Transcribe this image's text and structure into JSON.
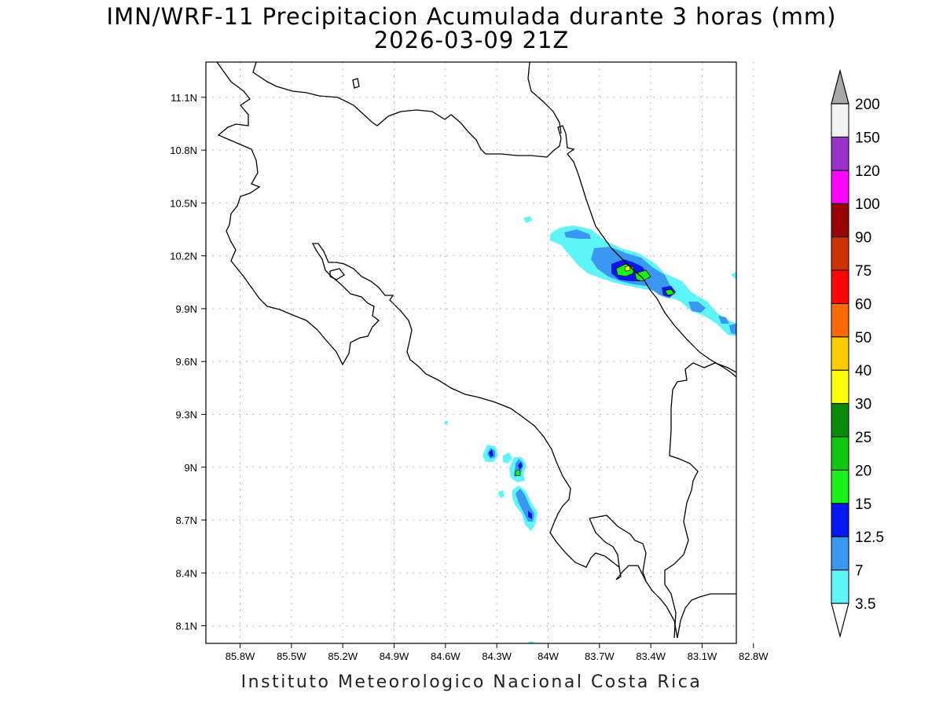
{
  "title": {
    "line1": "IMN/WRF-11 Precipitacion Acumulada durante 3 horas (mm)",
    "line2": "2026-03-09 21Z"
  },
  "footer": "Instituto Meteorologico Nacional Costa Rica",
  "map": {
    "lon_range": [
      -86.0,
      -82.9
    ],
    "lat_range": [
      8.0,
      11.3
    ],
    "lon_ticks": [
      {
        "value": -85.8,
        "label": "85.8W"
      },
      {
        "value": -85.5,
        "label": "85.5W"
      },
      {
        "value": -85.2,
        "label": "85.2W"
      },
      {
        "value": -84.9,
        "label": "84.9W"
      },
      {
        "value": -84.6,
        "label": "84.6W"
      },
      {
        "value": -84.3,
        "label": "84.3W"
      },
      {
        "value": -84.0,
        "label": "84W"
      },
      {
        "value": -83.7,
        "label": "83.7W"
      },
      {
        "value": -83.4,
        "label": "83.4W"
      },
      {
        "value": -83.1,
        "label": "83.1W"
      },
      {
        "value": -82.8,
        "label": "82.8W"
      }
    ],
    "lat_ticks": [
      {
        "value": 11.1,
        "label": "11.1N"
      },
      {
        "value": 10.8,
        "label": "10.8N"
      },
      {
        "value": 10.5,
        "label": "10.5N"
      },
      {
        "value": 10.2,
        "label": "10.2N"
      },
      {
        "value": 9.9,
        "label": "9.9N"
      },
      {
        "value": 9.6,
        "label": "9.6N"
      },
      {
        "value": 9.3,
        "label": "9.3N"
      },
      {
        "value": 9.0,
        "label": "9N"
      },
      {
        "value": 8.7,
        "label": "8.7N"
      },
      {
        "value": 8.4,
        "label": "8.4N"
      },
      {
        "value": 8.1,
        "label": "8.1N"
      }
    ],
    "grid": true
  },
  "colorbar": {
    "levels": [
      {
        "label": "3.5",
        "color": "#5ef5f8"
      },
      {
        "label": "7",
        "color": "#3b98f2"
      },
      {
        "label": "12.5",
        "color": "#0517f2"
      },
      {
        "label": "15",
        "color": "#18f218"
      },
      {
        "label": "20",
        "color": "#0fc70f"
      },
      {
        "label": "25",
        "color": "#0a8a0a"
      },
      {
        "label": "30",
        "color": "#ffff05"
      },
      {
        "label": "40",
        "color": "#ffcc00"
      },
      {
        "label": "50",
        "color": "#ff6a00"
      },
      {
        "label": "60",
        "color": "#ff0505"
      },
      {
        "label": "75",
        "color": "#cc3300"
      },
      {
        "label": "90",
        "color": "#990505"
      },
      {
        "label": "100",
        "color": "#ff05ff"
      },
      {
        "label": "120",
        "color": "#9933cc"
      },
      {
        "label": "150",
        "color": "#f2f2f2"
      },
      {
        "label": "200",
        "color": "#a8a8a8"
      }
    ]
  },
  "colors": {
    "light_cyan": "#5ef5f8",
    "blue": "#3b98f2",
    "dark_blue": "#0517f2",
    "green": "#18f218",
    "yellow": "#ffff05"
  }
}
